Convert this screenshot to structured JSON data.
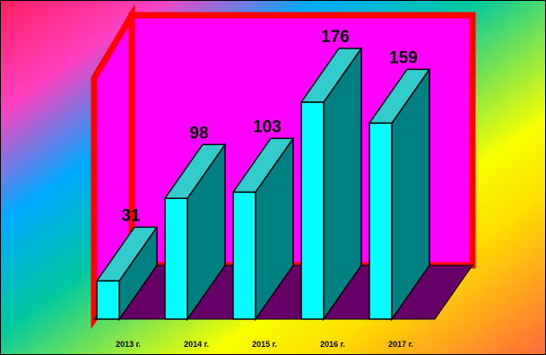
{
  "chart_data": {
    "type": "bar",
    "categories": [
      "2013 г.",
      "2014 г.",
      "2015 г.",
      "2016 г.",
      "2017 г."
    ],
    "values": [
      31,
      98,
      103,
      176,
      159
    ],
    "ylim": [
      0,
      200
    ],
    "grid": false,
    "legend": "none",
    "colors": {
      "bar_front": "#00ffff",
      "bar_side": "#008080",
      "bar_top": "#33cccc",
      "back_wall": "#ff00ff",
      "floor": "#660066",
      "wall_border": "#ff0000"
    }
  }
}
